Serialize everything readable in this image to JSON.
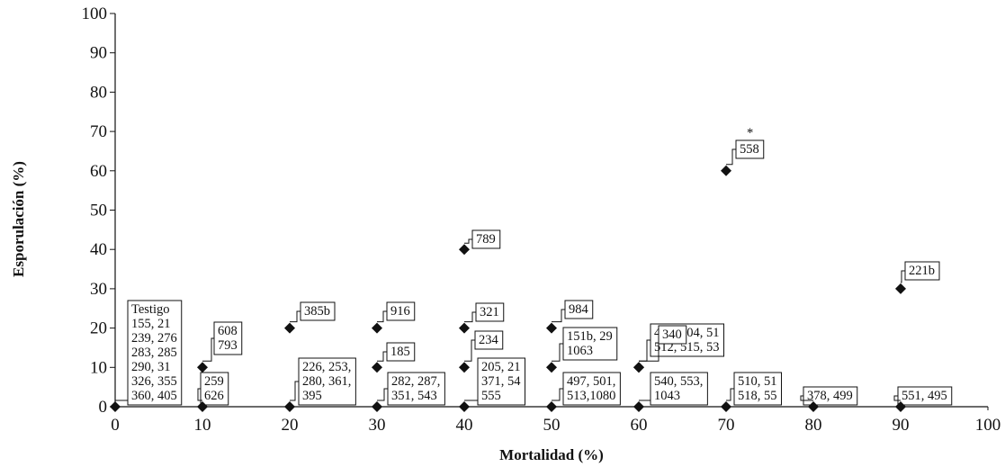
{
  "chart_data": {
    "type": "scatter",
    "xlabel": "Mortalidad (%)",
    "ylabel": "Esporulación (%)",
    "xlim": [
      0,
      100
    ],
    "ylim": [
      0,
      100
    ],
    "x_ticks": [
      "0",
      "10",
      "20",
      "30",
      "40",
      "50",
      "60",
      "70",
      "80",
      "90",
      "100"
    ],
    "y_ticks": [
      "0",
      "10",
      "20",
      "30",
      "40",
      "50",
      "60",
      "70",
      "80",
      "90",
      "100"
    ],
    "grid": false,
    "marker": "diamond",
    "points": [
      {
        "x": 0,
        "y": 0,
        "lines": [
          "Testigo",
          "155, 21",
          "239, 276",
          "283, 285",
          "290, 31",
          "326, 355",
          "360, 405"
        ]
      },
      {
        "x": 10,
        "y": 0,
        "lines": [
          "259",
          "626"
        ]
      },
      {
        "x": 10,
        "y": 10,
        "lines": [
          "608",
          "793"
        ]
      },
      {
        "x": 20,
        "y": 0,
        "lines": [
          "226, 253,",
          "280, 361,",
          "395"
        ]
      },
      {
        "x": 20,
        "y": 20,
        "lines": [
          "385b"
        ]
      },
      {
        "x": 30,
        "y": 0,
        "lines": [
          "282, 287,",
          "351, 543"
        ]
      },
      {
        "x": 30,
        "y": 10,
        "lines": [
          "185"
        ]
      },
      {
        "x": 30,
        "y": 20,
        "lines": [
          "916"
        ]
      },
      {
        "x": 40,
        "y": 0,
        "lines": [
          "205, 21",
          "371, 54",
          "555"
        ]
      },
      {
        "x": 40,
        "y": 10,
        "lines": [
          "234"
        ]
      },
      {
        "x": 40,
        "y": 20,
        "lines": [
          "321"
        ]
      },
      {
        "x": 40,
        "y": 40,
        "lines": [
          "789"
        ]
      },
      {
        "x": 50,
        "y": 0,
        "lines": [
          "497, 501,",
          "513,1080"
        ]
      },
      {
        "x": 50,
        "y": 10,
        "lines": [
          "151b, 29",
          "1063"
        ]
      },
      {
        "x": 50,
        "y": 20,
        "lines": [
          "984"
        ]
      },
      {
        "x": 60,
        "y": 0,
        "lines": [
          "540, 553,",
          "1043"
        ]
      },
      {
        "x": 60,
        "y": 10,
        "lines": [
          "409, 504, 51",
          "512, 515, 53"
        ]
      },
      {
        "x": 60,
        "y": 10,
        "lines": [
          "340"
        ]
      },
      {
        "x": 70,
        "y": 0,
        "lines": [
          "510, 51",
          "518, 55"
        ]
      },
      {
        "x": 70,
        "y": 60,
        "lines": [
          "558"
        ],
        "mark": "*"
      },
      {
        "x": 80,
        "y": 0,
        "lines": [
          "378, 499"
        ]
      },
      {
        "x": 90,
        "y": 0,
        "lines": [
          "551, 495"
        ]
      },
      {
        "x": 90,
        "y": 30,
        "lines": [
          "221b"
        ]
      }
    ]
  }
}
